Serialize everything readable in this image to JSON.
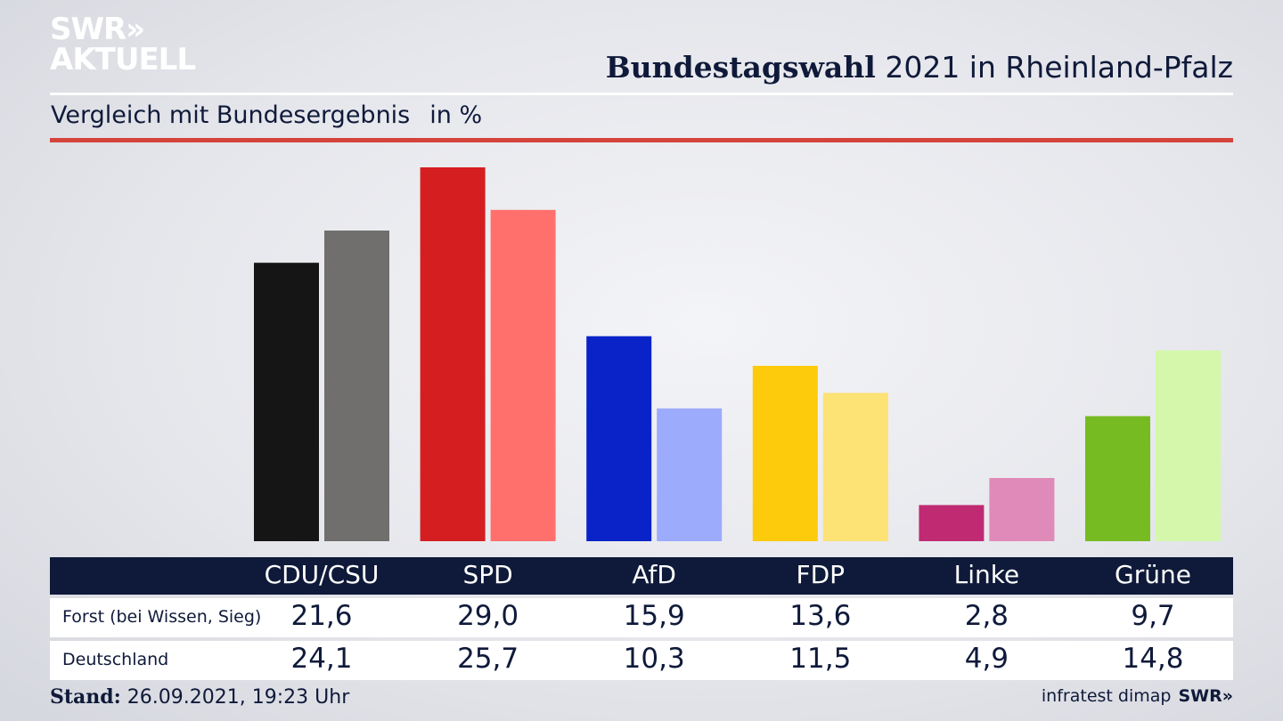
{
  "header": {
    "logo_line1": "SWR»",
    "logo_line2": "AKTUELL",
    "title_bold": "Bundestagswahl",
    "title_rest": " 2021 in Rheinland-Pfalz",
    "subtitle": "Vergleich mit Bundesergebnis",
    "unit": "in %"
  },
  "chart_data": {
    "type": "bar",
    "title": "Bundestagswahl 2021 in Rheinland-Pfalz",
    "subtitle": "Vergleich mit Bundesergebnis",
    "ylabel": "in %",
    "ylim": [
      0,
      29
    ],
    "categories": [
      "CDU/CSU",
      "SPD",
      "AfD",
      "FDP",
      "Linke",
      "Grüne"
    ],
    "series": [
      {
        "name": "Forst (bei Wissen, Sieg)",
        "values": [
          21.6,
          29.0,
          15.9,
          13.6,
          2.8,
          9.7
        ],
        "display": [
          "21,6",
          "29,0",
          "15,9",
          "13,6",
          "2,8",
          "9,7"
        ],
        "colors": [
          "#151515",
          "#d51e20",
          "#0a23c8",
          "#fdca0c",
          "#bf2a73",
          "#76bb22"
        ]
      },
      {
        "name": "Deutschland",
        "values": [
          24.1,
          25.7,
          10.3,
          11.5,
          4.9,
          14.8
        ],
        "display": [
          "24,1",
          "25,7",
          "10,3",
          "11,5",
          "4,9",
          "14,8"
        ],
        "colors": [
          "#706f6e",
          "#ff706c",
          "#9dabfd",
          "#fde275",
          "#e08ab9",
          "#d4f7ab"
        ]
      }
    ],
    "grid": false,
    "legend": "none"
  },
  "footer": {
    "stand_label": "Stand:",
    "stand_value": " 26.09.2021, 19:23 Uhr",
    "source": "infratest dimap",
    "brand": "SWR»"
  }
}
